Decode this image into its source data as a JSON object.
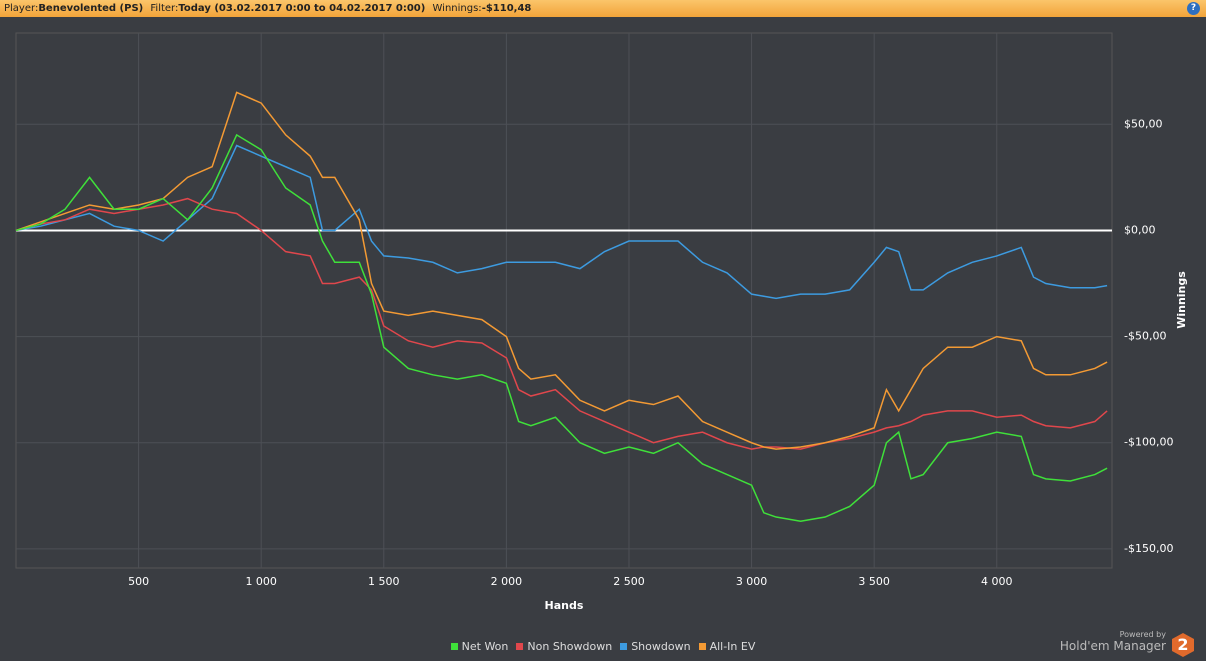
{
  "header": {
    "player_label": "Player:",
    "player": "Benevolented (PS)",
    "filter_label": "Filter:",
    "filter": "Today (03.02.2017 0:00 to 04.02.2017 0:00)",
    "winnings_label": "Winnings:",
    "winnings": "-$110,48",
    "help": "?"
  },
  "chart_data": {
    "type": "line",
    "xlabel": "Hands",
    "ylabel": "Winnings",
    "xlim": [
      0,
      4470
    ],
    "ylim": [
      -159,
      93
    ],
    "xticks": [
      500,
      {
        "value": 1000,
        "label": "1 000"
      },
      {
        "value": 1500,
        "label": "1 500"
      },
      {
        "value": 2000,
        "label": "2 000"
      },
      {
        "value": 2500,
        "label": "2 500"
      },
      {
        "value": 3000,
        "label": "3 000"
      },
      {
        "value": 3500,
        "label": "3 500"
      },
      {
        "value": 4000,
        "label": "4 000"
      }
    ],
    "yticks": [
      {
        "value": 50,
        "label": "$50,00"
      },
      {
        "value": 0,
        "label": "$0,00"
      },
      {
        "value": -50,
        "label": "-$50,00"
      },
      {
        "value": -100,
        "label": "-$100,00"
      },
      {
        "value": -150,
        "label": "-$150,00"
      }
    ],
    "grid": true,
    "x": [
      0,
      100,
      200,
      300,
      400,
      500,
      600,
      700,
      800,
      900,
      1000,
      1100,
      1200,
      1250,
      1300,
      1400,
      1450,
      1500,
      1600,
      1700,
      1800,
      1900,
      2000,
      2050,
      2100,
      2200,
      2300,
      2400,
      2500,
      2600,
      2700,
      2800,
      2900,
      3000,
      3050,
      3100,
      3200,
      3300,
      3400,
      3500,
      3550,
      3600,
      3650,
      3700,
      3800,
      3900,
      4000,
      4100,
      4150,
      4200,
      4300,
      4400,
      4450
    ],
    "series": [
      {
        "name": "Net Won",
        "color": "#3fe03a",
        "values": [
          0,
          3,
          10,
          25,
          10,
          10,
          15,
          5,
          20,
          45,
          38,
          20,
          12,
          -5,
          -15,
          -15,
          -30,
          -55,
          -65,
          -68,
          -70,
          -68,
          -72,
          -90,
          -92,
          -88,
          -100,
          -105,
          -102,
          -105,
          -100,
          -110,
          -115,
          -120,
          -133,
          -135,
          -137,
          -135,
          -130,
          -120,
          -100,
          -95,
          -117,
          -115,
          -100,
          -98,
          -95,
          -97,
          -115,
          -117,
          -118,
          -115,
          -112
        ]
      },
      {
        "name": "Non Showdown",
        "color": "#e0474c",
        "values": [
          0,
          3,
          5,
          10,
          8,
          10,
          12,
          15,
          10,
          8,
          0,
          -10,
          -12,
          -25,
          -25,
          -22,
          -28,
          -45,
          -52,
          -55,
          -52,
          -53,
          -60,
          -75,
          -78,
          -75,
          -85,
          -90,
          -95,
          -100,
          -97,
          -95,
          -100,
          -103,
          -102,
          -102,
          -103,
          -100,
          -98,
          -95,
          -93,
          -92,
          -90,
          -87,
          -85,
          -85,
          -88,
          -87,
          -90,
          -92,
          -93,
          -90,
          -85
        ]
      },
      {
        "name": "Showdown",
        "color": "#3d9be0",
        "values": [
          0,
          2,
          5,
          8,
          2,
          0,
          -5,
          5,
          15,
          40,
          35,
          30,
          25,
          0,
          0,
          10,
          -5,
          -12,
          -13,
          -15,
          -20,
          -18,
          -15,
          -15,
          -15,
          -15,
          -18,
          -10,
          -5,
          -5,
          -5,
          -15,
          -20,
          -30,
          -31,
          -32,
          -30,
          -30,
          -28,
          -15,
          -8,
          -10,
          -28,
          -28,
          -20,
          -15,
          -12,
          -8,
          -22,
          -25,
          -27,
          -27,
          -26
        ]
      },
      {
        "name": "All-In EV",
        "color": "#f39a34",
        "values": [
          0,
          4,
          8,
          12,
          10,
          12,
          15,
          25,
          30,
          65,
          60,
          45,
          35,
          25,
          25,
          5,
          -25,
          -38,
          -40,
          -38,
          -40,
          -42,
          -50,
          -65,
          -70,
          -68,
          -80,
          -85,
          -80,
          -82,
          -78,
          -90,
          -95,
          -100,
          -102,
          -103,
          -102,
          -100,
          -97,
          -93,
          -75,
          -85,
          -75,
          -65,
          -55,
          -55,
          -50,
          -52,
          -65,
          -68,
          -68,
          -65,
          -62
        ]
      }
    ]
  },
  "footer": {
    "powered": "Powered by",
    "brand": "Hold'em Manager",
    "version": "2"
  }
}
